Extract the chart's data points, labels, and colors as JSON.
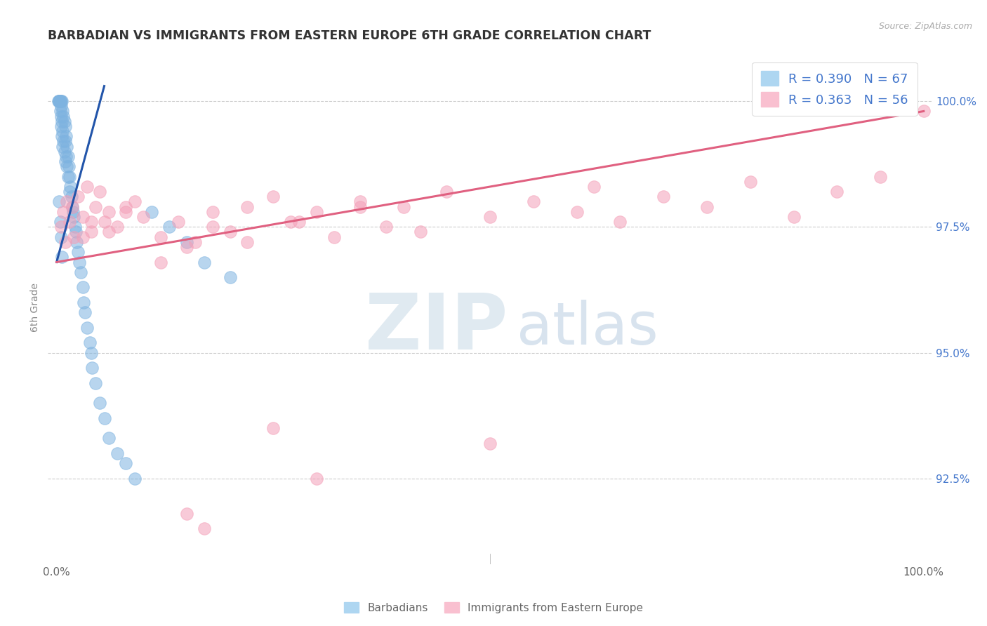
{
  "title": "BARBADIAN VS IMMIGRANTS FROM EASTERN EUROPE 6TH GRADE CORRELATION CHART",
  "source_text": "Source: ZipAtlas.com",
  "ylabel": "6th Grade",
  "right_yticks": [
    92.5,
    95.0,
    97.5,
    100.0
  ],
  "right_yticklabels": [
    "92.5%",
    "95.0%",
    "97.5%",
    "100.0%"
  ],
  "xlim": [
    -1,
    101
  ],
  "ylim": [
    90.8,
    101.0
  ],
  "R_blue": 0.39,
  "N_blue": 67,
  "R_pink": 0.363,
  "N_pink": 56,
  "blue_color": "#7EB3E0",
  "pink_color": "#F4A0B8",
  "blue_line_color": "#2255AA",
  "pink_line_color": "#E06080",
  "legend_blue_label": "Barbadians",
  "legend_pink_label": "Immigrants from Eastern Europe",
  "watermark_zip": "ZIP",
  "watermark_atlas": "atlas",
  "background_color": "#FFFFFF",
  "grid_color": "#CCCCCC",
  "title_color": "#333333",
  "axis_label_color": "#888888",
  "right_tick_color": "#4477CC",
  "blue_scatter_x": [
    0.2,
    0.3,
    0.3,
    0.3,
    0.4,
    0.4,
    0.4,
    0.5,
    0.5,
    0.5,
    0.5,
    0.6,
    0.6,
    0.6,
    0.7,
    0.7,
    0.7,
    0.8,
    0.8,
    0.9,
    0.9,
    1.0,
    1.0,
    1.0,
    1.1,
    1.1,
    1.2,
    1.2,
    1.3,
    1.3,
    1.4,
    1.5,
    1.5,
    1.6,
    1.7,
    1.8,
    1.9,
    2.0,
    2.1,
    2.2,
    2.3,
    2.5,
    2.6,
    2.8,
    3.0,
    3.1,
    3.3,
    3.5,
    3.8,
    4.0,
    4.1,
    4.5,
    5.0,
    5.5,
    6.0,
    7.0,
    8.0,
    9.0,
    11.0,
    13.0,
    15.0,
    17.0,
    20.0,
    0.3,
    0.4,
    0.5,
    0.6
  ],
  "blue_scatter_y": [
    100.0,
    100.0,
    100.0,
    100.0,
    100.0,
    100.0,
    99.8,
    100.0,
    99.9,
    99.7,
    99.5,
    100.0,
    99.6,
    99.3,
    99.8,
    99.4,
    99.1,
    99.7,
    99.2,
    99.6,
    99.0,
    99.5,
    99.2,
    98.8,
    99.3,
    98.9,
    99.1,
    98.7,
    98.9,
    98.5,
    98.7,
    98.5,
    98.2,
    98.3,
    98.1,
    97.9,
    97.8,
    97.7,
    97.5,
    97.4,
    97.2,
    97.0,
    96.8,
    96.6,
    96.3,
    96.0,
    95.8,
    95.5,
    95.2,
    95.0,
    94.7,
    94.4,
    94.0,
    93.7,
    93.3,
    93.0,
    92.8,
    92.5,
    97.8,
    97.5,
    97.2,
    96.8,
    96.5,
    98.0,
    97.6,
    97.3,
    96.9
  ],
  "pink_scatter_x": [
    0.5,
    0.8,
    1.0,
    1.2,
    1.5,
    1.8,
    2.0,
    2.5,
    3.0,
    3.5,
    4.0,
    4.5,
    5.0,
    5.5,
    6.0,
    7.0,
    8.0,
    9.0,
    10.0,
    12.0,
    14.0,
    16.0,
    18.0,
    20.0,
    22.0,
    25.0,
    27.0,
    30.0,
    32.0,
    35.0,
    38.0,
    40.0,
    45.0,
    50.0,
    55.0,
    60.0,
    62.0,
    65.0,
    70.0,
    75.0,
    80.0,
    85.0,
    90.0,
    95.0,
    100.0,
    3.0,
    4.0,
    6.0,
    8.0,
    12.0,
    15.0,
    18.0,
    22.0,
    28.0,
    35.0,
    42.0
  ],
  "pink_scatter_y": [
    97.5,
    97.8,
    97.2,
    98.0,
    97.6,
    97.9,
    97.3,
    98.1,
    97.7,
    98.3,
    97.4,
    97.9,
    98.2,
    97.6,
    97.8,
    97.5,
    97.9,
    98.0,
    97.7,
    97.3,
    97.6,
    97.2,
    97.8,
    97.4,
    97.9,
    98.1,
    97.6,
    97.8,
    97.3,
    98.0,
    97.5,
    97.9,
    98.2,
    97.7,
    98.0,
    97.8,
    98.3,
    97.6,
    98.1,
    97.9,
    98.4,
    97.7,
    98.2,
    98.5,
    99.8,
    97.3,
    97.6,
    97.4,
    97.8,
    96.8,
    97.1,
    97.5,
    97.2,
    97.6,
    97.9,
    97.4
  ],
  "pink_low_x": [
    15.0,
    17.0,
    25.0,
    30.0,
    50.0
  ],
  "pink_low_y": [
    91.8,
    91.5,
    93.5,
    92.5,
    93.2
  ],
  "blue_line_x0": 0.0,
  "blue_line_y0": 96.8,
  "blue_line_x1": 5.5,
  "blue_line_y1": 100.3,
  "pink_line_x0": 0.0,
  "pink_line_y0": 96.8,
  "pink_line_x1": 100.0,
  "pink_line_y1": 99.8
}
